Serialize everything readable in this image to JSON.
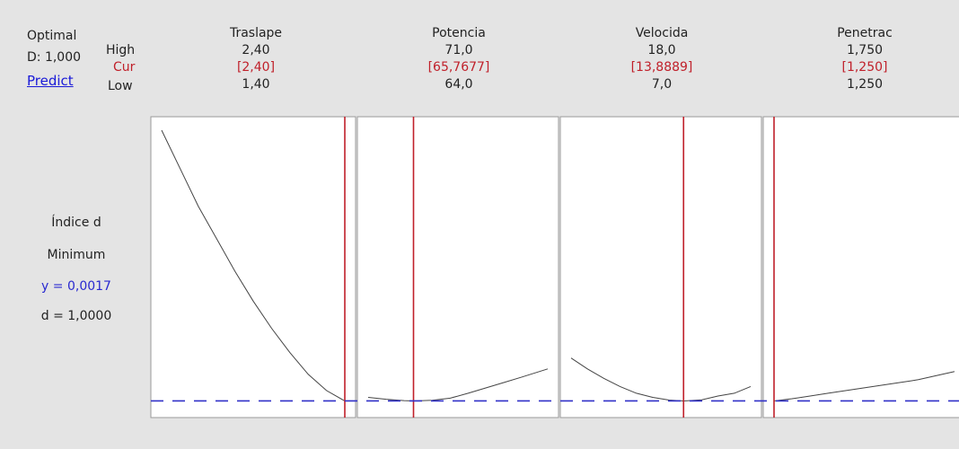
{
  "optimal": {
    "title": "Optimal",
    "d_label": "D: 1,000",
    "predict_label": "Predict"
  },
  "row_labels": {
    "high": "High",
    "cur": "Cur",
    "low": "Low"
  },
  "response": {
    "name": "Índice d",
    "goal": "Minimum",
    "y_text": "y = 0,0017",
    "d_text": "d = 1,0000"
  },
  "colors": {
    "current_line": "#c0202a",
    "optimum_dash": "#3030c8",
    "curve": "#444444",
    "red_text": "#c0202a",
    "blue_text": "#2a2ad0"
  },
  "factors": [
    {
      "name": "Traslape",
      "high": "2,40",
      "cur": "[2,40]",
      "low": "1,40"
    },
    {
      "name": "Potencia",
      "high": "71,0",
      "cur": "[65,7677]",
      "low": "64,0"
    },
    {
      "name": "Velocida",
      "high": "18,0",
      "cur": "[13,8889]",
      "low": "7,0"
    },
    {
      "name": "Penetrac",
      "high": "1,750",
      "cur": "[1,250]",
      "low": "1,250"
    }
  ],
  "chart_data": {
    "type": "line",
    "response": "Índice d",
    "goal": "Minimum",
    "optimum_y": 0.0017,
    "optimum_d": 1.0,
    "panels": [
      {
        "factor": "Traslape",
        "low": 1.4,
        "high": 2.4,
        "current": 2.4,
        "x": [
          1.4,
          1.5,
          1.6,
          1.7,
          1.8,
          1.9,
          2.0,
          2.1,
          2.2,
          2.3,
          2.4
        ],
        "y": [
          1.0,
          0.86,
          0.72,
          0.6,
          0.48,
          0.37,
          0.27,
          0.18,
          0.1,
          0.04,
          0.0017
        ]
      },
      {
        "factor": "Potencia",
        "low": 64.0,
        "high": 71.0,
        "current": 65.7677,
        "x": [
          64.0,
          64.7,
          65.4,
          65.77,
          66.5,
          67.2,
          67.9,
          68.6,
          69.3,
          70.0,
          71.0
        ],
        "y": [
          0.015,
          0.008,
          0.003,
          0.0017,
          0.004,
          0.012,
          0.03,
          0.05,
          0.07,
          0.09,
          0.12
        ]
      },
      {
        "factor": "Velocida",
        "low": 7.0,
        "high": 18.0,
        "current": 13.8889,
        "x": [
          7.0,
          8.0,
          9.0,
          10.0,
          11.0,
          12.0,
          13.0,
          13.89,
          15.0,
          16.0,
          17.0,
          18.0
        ],
        "y": [
          0.16,
          0.12,
          0.085,
          0.055,
          0.03,
          0.015,
          0.005,
          0.0017,
          0.006,
          0.02,
          0.03,
          0.055
        ]
      },
      {
        "factor": "Penetrac",
        "low": 1.25,
        "high": 1.75,
        "current": 1.25,
        "x": [
          1.25,
          1.3,
          1.35,
          1.4,
          1.45,
          1.5,
          1.55,
          1.6,
          1.65,
          1.7,
          1.75
        ],
        "y": [
          0.0017,
          0.01,
          0.02,
          0.03,
          0.04,
          0.05,
          0.06,
          0.07,
          0.08,
          0.095,
          0.11
        ]
      }
    ]
  }
}
